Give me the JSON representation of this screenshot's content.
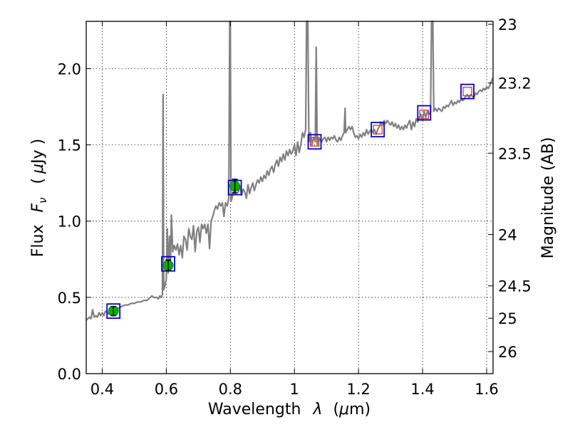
{
  "chart_data": {
    "type": "line",
    "xlabel_text": "Wavelength",
    "xlabel_symbol": "λ",
    "xlabel_unit_open": "(",
    "xlabel_unit_mu": "μ",
    "xlabel_unit_rest": "m)",
    "ylabel_text": "Flux",
    "ylabel_symbol": "F",
    "ylabel_subscript": "ν",
    "ylabel_unit_open": "(",
    "ylabel_unit_mu": "μ",
    "ylabel_unit_rest": "Jy )",
    "y2label": "Magnitude (AB)",
    "xlim": [
      0.35,
      1.62
    ],
    "ylim": [
      0.0,
      2.31
    ],
    "x_ticks": [
      {
        "value": 0.4,
        "label": "0.4"
      },
      {
        "value": 0.6,
        "label": "0.6"
      },
      {
        "value": 0.8,
        "label": "0.8"
      },
      {
        "value": 1.0,
        "label": "1"
      },
      {
        "value": 1.2,
        "label": "1.2"
      },
      {
        "value": 1.4,
        "label": "1.4"
      },
      {
        "value": 1.6,
        "label": "1.6"
      }
    ],
    "y_ticks": [
      {
        "value": 0.0,
        "label": "0.0"
      },
      {
        "value": 0.5,
        "label": "0.5"
      },
      {
        "value": 1.0,
        "label": "1.0"
      },
      {
        "value": 1.5,
        "label": "1.5"
      },
      {
        "value": 2.0,
        "label": "2.0"
      }
    ],
    "y2_ticks": [
      {
        "mag": 23,
        "label": "23"
      },
      {
        "mag": 23.2,
        "label": "23.2"
      },
      {
        "mag": 23.5,
        "label": "23.5"
      },
      {
        "mag": 24,
        "label": "24"
      },
      {
        "mag": 24.5,
        "label": "24.5"
      },
      {
        "mag": 25,
        "label": "25"
      },
      {
        "mag": 26,
        "label": "26"
      }
    ],
    "grid": true,
    "colors": {
      "spectrum": "#808080",
      "observed_fill": "#00b200",
      "model_box": "#0000cc",
      "model_box_inner": "#dd3333",
      "errorbar": "#000000"
    },
    "series": [
      {
        "name": "spectrum",
        "style": "gray line",
        "points": [
          [
            0.35,
            0.35
          ],
          [
            0.36,
            0.37
          ],
          [
            0.365,
            0.36
          ],
          [
            0.37,
            0.42
          ],
          [
            0.375,
            0.37
          ],
          [
            0.38,
            0.38
          ],
          [
            0.385,
            0.37
          ],
          [
            0.39,
            0.4
          ],
          [
            0.395,
            0.38
          ],
          [
            0.4,
            0.4
          ],
          [
            0.405,
            0.38
          ],
          [
            0.41,
            0.41
          ],
          [
            0.42,
            0.39
          ],
          [
            0.43,
            0.41
          ],
          [
            0.44,
            0.42
          ],
          [
            0.45,
            0.43
          ],
          [
            0.46,
            0.44
          ],
          [
            0.47,
            0.45
          ],
          [
            0.48,
            0.45
          ],
          [
            0.49,
            0.46
          ],
          [
            0.5,
            0.46
          ],
          [
            0.51,
            0.47
          ],
          [
            0.52,
            0.47
          ],
          [
            0.53,
            0.48
          ],
          [
            0.54,
            0.48
          ],
          [
            0.55,
            0.5
          ],
          [
            0.555,
            0.51
          ],
          [
            0.56,
            0.5
          ],
          [
            0.57,
            0.5
          ],
          [
            0.575,
            0.49
          ],
          [
            0.58,
            0.51
          ],
          [
            0.585,
            0.5
          ],
          [
            0.588,
            0.52
          ],
          [
            0.59,
            1.83
          ],
          [
            0.592,
            0.55
          ],
          [
            0.595,
            0.57
          ],
          [
            0.6,
            0.62
          ],
          [
            0.603,
            0.95
          ],
          [
            0.606,
            0.66
          ],
          [
            0.61,
            0.9
          ],
          [
            0.613,
            0.72
          ],
          [
            0.616,
            1.04
          ],
          [
            0.62,
            0.8
          ],
          [
            0.625,
            0.84
          ],
          [
            0.63,
            0.81
          ],
          [
            0.635,
            0.85
          ],
          [
            0.64,
            0.78
          ],
          [
            0.645,
            0.84
          ],
          [
            0.65,
            0.76
          ],
          [
            0.655,
            0.9
          ],
          [
            0.66,
            0.88
          ],
          [
            0.665,
            0.81
          ],
          [
            0.67,
            0.95
          ],
          [
            0.675,
            0.9
          ],
          [
            0.68,
            0.88
          ],
          [
            0.685,
            0.97
          ],
          [
            0.69,
            0.8
          ],
          [
            0.695,
            0.93
          ],
          [
            0.7,
            0.96
          ],
          [
            0.705,
            0.86
          ],
          [
            0.71,
            0.98
          ],
          [
            0.715,
            0.95
          ],
          [
            0.72,
            0.98
          ],
          [
            0.725,
            0.92
          ],
          [
            0.73,
            0.98
          ],
          [
            0.735,
            0.82
          ],
          [
            0.74,
            1.0
          ],
          [
            0.745,
            1.03
          ],
          [
            0.75,
            1.07
          ],
          [
            0.755,
            1.1
          ],
          [
            0.76,
            1.08
          ],
          [
            0.765,
            1.12
          ],
          [
            0.77,
            1.1
          ],
          [
            0.775,
            1.12
          ],
          [
            0.78,
            1.03
          ],
          [
            0.785,
            1.12
          ],
          [
            0.79,
            1.1
          ],
          [
            0.795,
            1.15
          ],
          [
            0.798,
            2.31
          ],
          [
            0.8,
            2.31
          ],
          [
            0.802,
            1.13
          ],
          [
            0.805,
            1.15
          ],
          [
            0.81,
            1.2
          ],
          [
            0.815,
            1.18
          ],
          [
            0.82,
            1.22
          ],
          [
            0.825,
            1.19
          ],
          [
            0.83,
            1.23
          ],
          [
            0.835,
            1.17
          ],
          [
            0.84,
            1.21
          ],
          [
            0.845,
            1.19
          ],
          [
            0.85,
            1.15
          ],
          [
            0.855,
            1.24
          ],
          [
            0.86,
            1.18
          ],
          [
            0.865,
            1.22
          ],
          [
            0.87,
            1.25
          ],
          [
            0.875,
            1.2
          ],
          [
            0.88,
            1.24
          ],
          [
            0.885,
            1.27
          ],
          [
            0.89,
            1.25
          ],
          [
            0.895,
            1.29
          ],
          [
            0.9,
            1.26
          ],
          [
            0.905,
            1.3
          ],
          [
            0.91,
            1.28
          ],
          [
            0.915,
            1.33
          ],
          [
            0.92,
            1.3
          ],
          [
            0.925,
            1.34
          ],
          [
            0.93,
            1.36
          ],
          [
            0.935,
            1.32
          ],
          [
            0.94,
            1.37
          ],
          [
            0.945,
            1.4
          ],
          [
            0.95,
            1.36
          ],
          [
            0.955,
            1.42
          ],
          [
            0.96,
            1.39
          ],
          [
            0.965,
            1.44
          ],
          [
            0.97,
            1.4
          ],
          [
            0.975,
            1.46
          ],
          [
            0.98,
            1.43
          ],
          [
            0.985,
            1.47
          ],
          [
            0.99,
            1.44
          ],
          [
            0.995,
            1.46
          ],
          [
            1.0,
            1.5
          ],
          [
            1.005,
            1.43
          ],
          [
            1.01,
            1.52
          ],
          [
            1.015,
            1.45
          ],
          [
            1.02,
            1.5
          ],
          [
            1.025,
            1.58
          ],
          [
            1.03,
            1.55
          ],
          [
            1.035,
            1.6
          ],
          [
            1.038,
            2.31
          ],
          [
            1.042,
            2.31
          ],
          [
            1.045,
            1.52
          ],
          [
            1.05,
            1.58
          ],
          [
            1.055,
            1.5
          ],
          [
            1.06,
            1.55
          ],
          [
            1.065,
            1.52
          ],
          [
            1.068,
            2.14
          ],
          [
            1.071,
            1.5
          ],
          [
            1.075,
            1.55
          ],
          [
            1.08,
            1.53
          ],
          [
            1.085,
            1.52
          ],
          [
            1.09,
            1.54
          ],
          [
            1.095,
            1.55
          ],
          [
            1.1,
            1.52
          ],
          [
            1.105,
            1.55
          ],
          [
            1.11,
            1.53
          ],
          [
            1.115,
            1.55
          ],
          [
            1.12,
            1.54
          ],
          [
            1.125,
            1.56
          ],
          [
            1.13,
            1.53
          ],
          [
            1.135,
            1.52
          ],
          [
            1.14,
            1.55
          ],
          [
            1.145,
            1.53
          ],
          [
            1.15,
            1.56
          ],
          [
            1.155,
            1.58
          ],
          [
            1.158,
            1.74
          ],
          [
            1.16,
            1.58
          ],
          [
            1.165,
            1.6
          ],
          [
            1.17,
            1.62
          ],
          [
            1.175,
            1.6
          ],
          [
            1.18,
            1.62
          ],
          [
            1.185,
            1.58
          ],
          [
            1.19,
            1.55
          ],
          [
            1.195,
            1.56
          ],
          [
            1.2,
            1.54
          ],
          [
            1.205,
            1.57
          ],
          [
            1.21,
            1.55
          ],
          [
            1.215,
            1.58
          ],
          [
            1.22,
            1.56
          ],
          [
            1.225,
            1.6
          ],
          [
            1.23,
            1.57
          ],
          [
            1.235,
            1.59
          ],
          [
            1.24,
            1.6
          ],
          [
            1.245,
            1.58
          ],
          [
            1.25,
            1.6
          ],
          [
            1.255,
            1.57
          ],
          [
            1.26,
            1.6
          ],
          [
            1.265,
            1.62
          ],
          [
            1.27,
            1.65
          ],
          [
            1.275,
            1.63
          ],
          [
            1.28,
            1.66
          ],
          [
            1.285,
            1.64
          ],
          [
            1.29,
            1.66
          ],
          [
            1.3,
            1.63
          ],
          [
            1.305,
            1.65
          ],
          [
            1.31,
            1.62
          ],
          [
            1.315,
            1.64
          ],
          [
            1.32,
            1.61
          ],
          [
            1.325,
            1.63
          ],
          [
            1.33,
            1.6
          ],
          [
            1.335,
            1.62
          ],
          [
            1.34,
            1.6
          ],
          [
            1.345,
            1.63
          ],
          [
            1.35,
            1.61
          ],
          [
            1.355,
            1.64
          ],
          [
            1.36,
            1.66
          ],
          [
            1.365,
            1.6
          ],
          [
            1.37,
            1.65
          ],
          [
            1.375,
            1.62
          ],
          [
            1.38,
            1.67
          ],
          [
            1.385,
            1.65
          ],
          [
            1.39,
            1.68
          ],
          [
            1.395,
            1.7
          ],
          [
            1.4,
            1.66
          ],
          [
            1.405,
            1.72
          ],
          [
            1.41,
            1.68
          ],
          [
            1.415,
            1.72
          ],
          [
            1.42,
            1.7
          ],
          [
            1.425,
            1.72
          ],
          [
            1.428,
            2.31
          ],
          [
            1.432,
            2.31
          ],
          [
            1.435,
            1.72
          ],
          [
            1.44,
            1.74
          ],
          [
            1.445,
            1.72
          ],
          [
            1.45,
            1.74
          ],
          [
            1.455,
            1.73
          ],
          [
            1.46,
            1.72
          ],
          [
            1.465,
            1.75
          ],
          [
            1.47,
            1.74
          ],
          [
            1.475,
            1.76
          ],
          [
            1.48,
            1.75
          ],
          [
            1.485,
            1.77
          ],
          [
            1.49,
            1.79
          ],
          [
            1.495,
            1.76
          ],
          [
            1.5,
            1.78
          ],
          [
            1.505,
            1.77
          ],
          [
            1.51,
            1.79
          ],
          [
            1.515,
            1.78
          ],
          [
            1.52,
            1.8
          ],
          [
            1.525,
            1.79
          ],
          [
            1.53,
            1.8
          ],
          [
            1.535,
            1.82
          ],
          [
            1.54,
            1.83
          ],
          [
            1.545,
            1.81
          ],
          [
            1.55,
            1.83
          ],
          [
            1.555,
            1.82
          ],
          [
            1.56,
            1.81
          ],
          [
            1.565,
            1.84
          ],
          [
            1.57,
            1.83
          ],
          [
            1.575,
            1.85
          ],
          [
            1.58,
            1.86
          ],
          [
            1.585,
            1.85
          ],
          [
            1.59,
            1.87
          ],
          [
            1.595,
            1.86
          ],
          [
            1.6,
            1.88
          ],
          [
            1.605,
            1.87
          ],
          [
            1.61,
            1.89
          ],
          [
            1.615,
            1.92
          ],
          [
            1.62,
            1.94
          ]
        ]
      },
      {
        "name": "observed photometry",
        "style": "green filled circles with error bars",
        "x": [
          0.435,
          0.606,
          0.814
        ],
        "y": [
          0.41,
          0.71,
          1.23
        ],
        "yerr": [
          0.03,
          0.035,
          0.045
        ]
      },
      {
        "name": "model photometry",
        "style": "blue open squares",
        "x": [
          0.435,
          0.606,
          0.814,
          1.063,
          1.26,
          1.405,
          1.54
        ],
        "y": [
          0.41,
          0.72,
          1.22,
          1.52,
          1.6,
          1.71,
          1.85
        ]
      },
      {
        "name": "upper points",
        "style": "small red open squares inside blue",
        "x": [
          1.063,
          1.26,
          1.405,
          1.54
        ],
        "y": [
          1.52,
          1.6,
          1.7,
          1.85
        ]
      }
    ]
  }
}
